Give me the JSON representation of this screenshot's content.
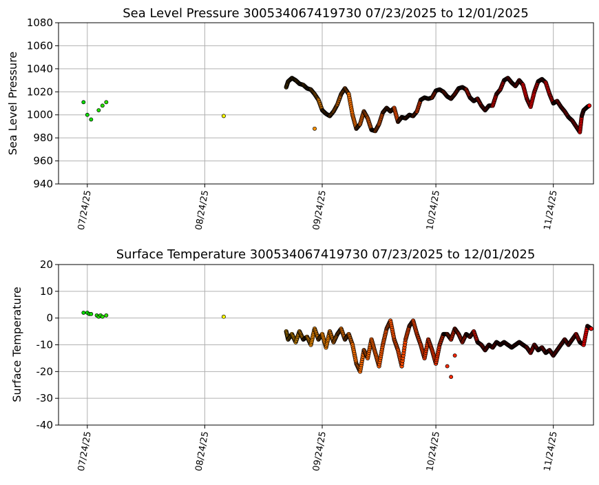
{
  "chart_data": [
    {
      "type": "scatter",
      "title": "Sea Level Pressure 300534067419730  07/23/2025 to 12/01/2025",
      "xlabel": "",
      "ylabel": "Sea Level Pressure",
      "ylim": [
        940,
        1080
      ],
      "yticks": [
        940,
        960,
        980,
        1000,
        1020,
        1040,
        1060,
        1080
      ],
      "xlim_days": [
        -7.6,
        133.6
      ],
      "xticks": [
        {
          "day": 0,
          "label": "07/24/25"
        },
        {
          "day": 31,
          "label": "08/24/25"
        },
        {
          "day": 62,
          "label": "09/24/25"
        },
        {
          "day": 92,
          "label": "10/24/25"
        },
        {
          "day": 123,
          "label": "11/24/25"
        }
      ],
      "grid": true,
      "color_scale": [
        "#00dd00",
        "#ffff00",
        "#ff9900",
        "#ff5500",
        "#ee0000"
      ],
      "scattered_points": [
        [
          -1,
          1011
        ],
        [
          0,
          1000
        ],
        [
          1,
          996
        ],
        [
          3,
          1004
        ],
        [
          4,
          1008
        ],
        [
          5,
          1011
        ],
        [
          36,
          999
        ],
        [
          60,
          988
        ]
      ],
      "trace": [
        [
          52.5,
          1024
        ],
        [
          53,
          1029
        ],
        [
          54,
          1032
        ],
        [
          55,
          1030
        ],
        [
          56,
          1027
        ],
        [
          57,
          1026
        ],
        [
          58,
          1023
        ],
        [
          59,
          1022
        ],
        [
          60,
          1018
        ],
        [
          61,
          1013
        ],
        [
          62,
          1004
        ],
        [
          63,
          1001
        ],
        [
          64,
          999
        ],
        [
          65,
          1003
        ],
        [
          66,
          1009
        ],
        [
          67,
          1018
        ],
        [
          68,
          1023
        ],
        [
          69,
          1018
        ],
        [
          70,
          1000
        ],
        [
          71,
          988
        ],
        [
          72,
          992
        ],
        [
          73,
          1003
        ],
        [
          74,
          997
        ],
        [
          75,
          987
        ],
        [
          76,
          986
        ],
        [
          77,
          992
        ],
        [
          78,
          1002
        ],
        [
          79,
          1006
        ],
        [
          80,
          1003
        ],
        [
          81,
          1006
        ],
        [
          82,
          994
        ],
        [
          83,
          998
        ],
        [
          84,
          997
        ],
        [
          85,
          1000
        ],
        [
          86,
          999
        ],
        [
          87,
          1003
        ],
        [
          88,
          1013
        ],
        [
          89,
          1015
        ],
        [
          90,
          1014
        ],
        [
          91,
          1015
        ],
        [
          92,
          1021
        ],
        [
          93,
          1022
        ],
        [
          94,
          1020
        ],
        [
          95,
          1016
        ],
        [
          96,
          1014
        ],
        [
          97,
          1018
        ],
        [
          98,
          1023
        ],
        [
          99,
          1024
        ],
        [
          100,
          1022
        ],
        [
          101,
          1015
        ],
        [
          102,
          1012
        ],
        [
          103,
          1014
        ],
        [
          104,
          1008
        ],
        [
          105,
          1004
        ],
        [
          106,
          1008
        ],
        [
          107,
          1008
        ],
        [
          108,
          1018
        ],
        [
          109,
          1022
        ],
        [
          110,
          1030
        ],
        [
          111,
          1032
        ],
        [
          112,
          1028
        ],
        [
          113,
          1025
        ],
        [
          114,
          1030
        ],
        [
          115,
          1026
        ],
        [
          116,
          1014
        ],
        [
          117,
          1007
        ],
        [
          118,
          1020
        ],
        [
          119,
          1029
        ],
        [
          120,
          1031
        ],
        [
          121,
          1028
        ],
        [
          122,
          1018
        ],
        [
          123,
          1010
        ],
        [
          124,
          1012
        ],
        [
          125,
          1007
        ],
        [
          126,
          1003
        ],
        [
          127,
          998
        ],
        [
          128,
          995
        ],
        [
          129,
          990
        ],
        [
          130,
          985
        ],
        [
          130.5,
          999
        ],
        [
          131,
          1004
        ],
        [
          132,
          1007
        ],
        [
          132.5,
          1008
        ]
      ]
    },
    {
      "type": "scatter",
      "title": "Surface Temperature 300534067419730  07/23/2025 to 12/01/2025",
      "xlabel": "",
      "ylabel": "Surface Temperature",
      "ylim": [
        -40,
        20
      ],
      "yticks": [
        -40,
        -30,
        -20,
        -10,
        0,
        10,
        20
      ],
      "xlim_days": [
        -7.6,
        133.6
      ],
      "xticks": [
        {
          "day": 0,
          "label": "07/24/25"
        },
        {
          "day": 31,
          "label": "08/24/25"
        },
        {
          "day": 62,
          "label": "09/24/25"
        },
        {
          "day": 92,
          "label": "10/24/25"
        },
        {
          "day": 123,
          "label": "11/24/25"
        }
      ],
      "grid": true,
      "color_scale": [
        "#00dd00",
        "#ffff00",
        "#ff9900",
        "#ff5500",
        "#ee0000"
      ],
      "scattered_points": [
        [
          -1,
          2
        ],
        [
          0,
          2
        ],
        [
          0.5,
          1.5
        ],
        [
          1,
          1.5
        ],
        [
          2.5,
          1
        ],
        [
          3,
          0.5
        ],
        [
          3.5,
          1
        ],
        [
          4,
          0.5
        ],
        [
          5,
          1
        ],
        [
          36,
          0.5
        ],
        [
          95,
          -18
        ],
        [
          96,
          -22
        ],
        [
          97,
          -14
        ]
      ],
      "trace": [
        [
          52.5,
          -5
        ],
        [
          53,
          -8
        ],
        [
          54,
          -6
        ],
        [
          55,
          -9
        ],
        [
          56,
          -5
        ],
        [
          57,
          -8
        ],
        [
          58,
          -7
        ],
        [
          59,
          -10
        ],
        [
          60,
          -4
        ],
        [
          61,
          -8
        ],
        [
          62,
          -6
        ],
        [
          63,
          -11
        ],
        [
          64,
          -5
        ],
        [
          65,
          -9
        ],
        [
          66,
          -6
        ],
        [
          67,
          -4
        ],
        [
          68,
          -8
        ],
        [
          69,
          -6
        ],
        [
          70,
          -10
        ],
        [
          71,
          -17
        ],
        [
          72,
          -20
        ],
        [
          73,
          -12
        ],
        [
          74,
          -15
        ],
        [
          75,
          -8
        ],
        [
          76,
          -13
        ],
        [
          77,
          -18
        ],
        [
          78,
          -10
        ],
        [
          79,
          -4
        ],
        [
          80,
          -1
        ],
        [
          81,
          -8
        ],
        [
          82,
          -12
        ],
        [
          83,
          -18
        ],
        [
          84,
          -8
        ],
        [
          85,
          -3
        ],
        [
          86,
          -1
        ],
        [
          87,
          -6
        ],
        [
          88,
          -10
        ],
        [
          89,
          -15
        ],
        [
          90,
          -8
        ],
        [
          91,
          -12
        ],
        [
          92,
          -17
        ],
        [
          93,
          -10
        ],
        [
          94,
          -6
        ],
        [
          95,
          -6
        ],
        [
          96,
          -8
        ],
        [
          97,
          -4
        ],
        [
          98,
          -6
        ],
        [
          99,
          -9
        ],
        [
          100,
          -6
        ],
        [
          101,
          -7
        ],
        [
          102,
          -5
        ],
        [
          103,
          -9
        ],
        [
          104,
          -10
        ],
        [
          105,
          -12
        ],
        [
          106,
          -10
        ],
        [
          107,
          -11
        ],
        [
          108,
          -9
        ],
        [
          109,
          -10
        ],
        [
          110,
          -9
        ],
        [
          111,
          -10
        ],
        [
          112,
          -11
        ],
        [
          113,
          -10
        ],
        [
          114,
          -9
        ],
        [
          115,
          -10
        ],
        [
          116,
          -11
        ],
        [
          117,
          -13
        ],
        [
          118,
          -10
        ],
        [
          119,
          -12
        ],
        [
          120,
          -11
        ],
        [
          121,
          -13
        ],
        [
          122,
          -12
        ],
        [
          123,
          -14
        ],
        [
          124,
          -12
        ],
        [
          125,
          -10
        ],
        [
          126,
          -8
        ],
        [
          127,
          -10
        ],
        [
          128,
          -8
        ],
        [
          129,
          -6
        ],
        [
          130,
          -9
        ],
        [
          131,
          -10
        ],
        [
          132,
          -3
        ],
        [
          133,
          -4
        ]
      ]
    }
  ]
}
